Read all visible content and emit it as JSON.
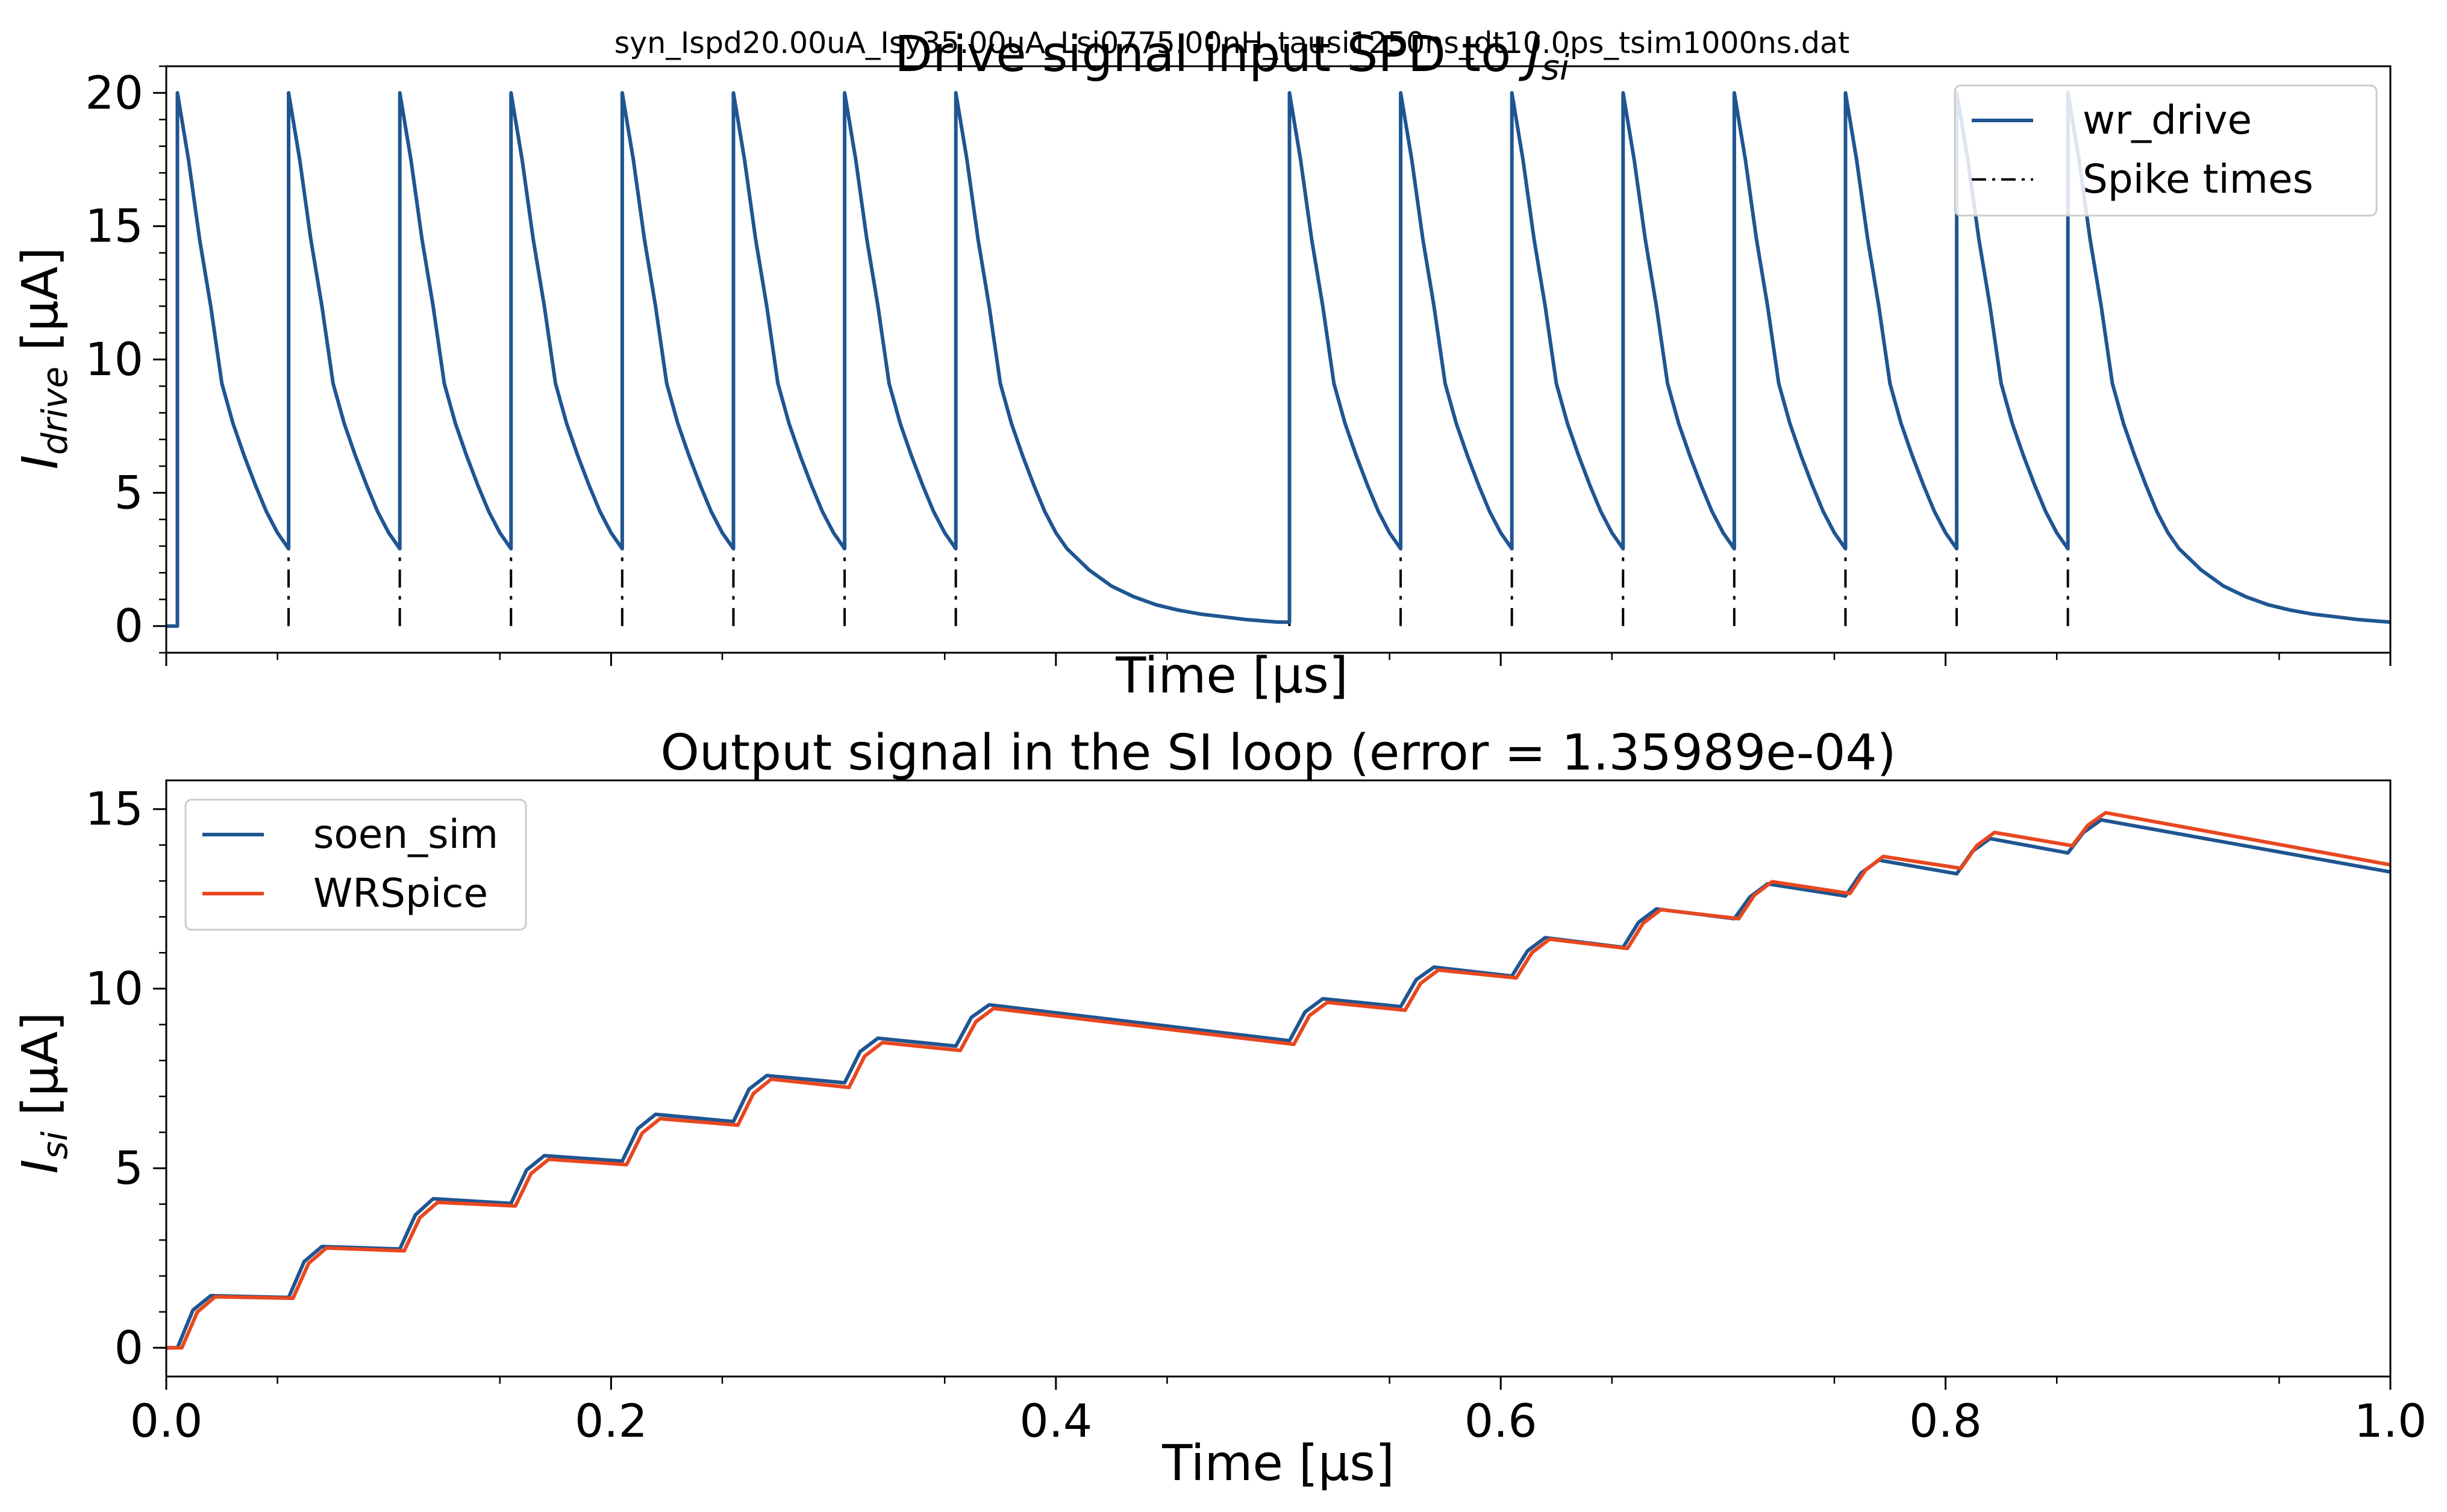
{
  "figure": {
    "suptitle": "syn_Ispd20.00uA_Isy35.00uA_Lsi0775.00nH_tausi1250ns_dt10.0ps_tsim1000ns.dat"
  },
  "colors": {
    "series_blue": "#1f5591",
    "series_orange": "#e8471f",
    "spike_black": "#000000",
    "axes": "#000000"
  },
  "chart_data": [
    {
      "type": "line",
      "title": "Drive signal input SPD to J_si",
      "xlabel": "Time [μs]",
      "ylabel": "I_drive [μA]",
      "xlim": [
        0.0,
        1.0
      ],
      "ylim": [
        -1.0,
        21.0
      ],
      "yticks": [
        0,
        5,
        10,
        15,
        20
      ],
      "xticks_labeled": false,
      "grid": false,
      "legend": "top-right",
      "spike_times": [
        0.005,
        0.055,
        0.105,
        0.155,
        0.205,
        0.255,
        0.305,
        0.355,
        0.505,
        0.555,
        0.605,
        0.655,
        0.705,
        0.755,
        0.805,
        0.855
      ],
      "drive_peak": 20.0,
      "drive_decay_samples_after_spike": {
        "dt_us": [
          0.0,
          0.005,
          0.01,
          0.015,
          0.02,
          0.025,
          0.03,
          0.035,
          0.04,
          0.045,
          0.05,
          0.06,
          0.07,
          0.08,
          0.09,
          0.1,
          0.11,
          0.12,
          0.13,
          0.14,
          0.145
        ],
        "value_uA": [
          20.0,
          17.5,
          14.5,
          12.0,
          9.1,
          7.6,
          6.4,
          5.3,
          4.3,
          3.5,
          2.9,
          2.1,
          1.5,
          1.1,
          0.8,
          0.6,
          0.45,
          0.35,
          0.25,
          0.18,
          0.15
        ]
      },
      "series": [
        {
          "name": "wr_drive",
          "style": "solid",
          "color": "#1f5591"
        },
        {
          "name": "Spike times",
          "style": "dashdot",
          "color": "#000000"
        }
      ]
    },
    {
      "type": "line",
      "title": "Output signal in the SI loop (error = 1.35989e-04)",
      "xlabel": "Time [μs]",
      "ylabel": "I_si [μA]",
      "xlim": [
        0.0,
        1.0
      ],
      "ylim": [
        -0.8,
        15.8
      ],
      "xticks": [
        0.0,
        0.2,
        0.4,
        0.6,
        0.8,
        1.0
      ],
      "xtick_labels": [
        "0.0",
        "0.2",
        "0.4",
        "0.6",
        "0.8",
        "1.0"
      ],
      "yticks": [
        0,
        5,
        10,
        15
      ],
      "grid": false,
      "legend": "top-left",
      "series": [
        {
          "name": "soen_sim",
          "color": "#1f5591",
          "x": [
            0.0,
            0.005,
            0.012,
            0.02,
            0.055,
            0.062,
            0.07,
            0.105,
            0.112,
            0.12,
            0.155,
            0.162,
            0.17,
            0.205,
            0.212,
            0.22,
            0.255,
            0.262,
            0.27,
            0.305,
            0.312,
            0.32,
            0.355,
            0.362,
            0.37,
            0.505,
            0.512,
            0.52,
            0.555,
            0.562,
            0.57,
            0.605,
            0.612,
            0.62,
            0.655,
            0.662,
            0.67,
            0.705,
            0.712,
            0.72,
            0.755,
            0.762,
            0.77,
            0.805,
            0.812,
            0.82,
            0.855,
            0.862,
            0.87,
            1.0
          ],
          "y": [
            0.0,
            0.0,
            1.05,
            1.45,
            1.4,
            2.4,
            2.82,
            2.75,
            3.7,
            4.15,
            4.02,
            4.95,
            5.35,
            5.2,
            6.1,
            6.5,
            6.3,
            7.2,
            7.58,
            7.38,
            8.25,
            8.62,
            8.4,
            9.2,
            9.55,
            8.55,
            9.35,
            9.72,
            9.5,
            10.25,
            10.6,
            10.35,
            11.05,
            11.42,
            11.15,
            11.85,
            12.22,
            11.95,
            12.55,
            12.92,
            12.58,
            13.22,
            13.58,
            13.2,
            13.82,
            14.18,
            13.78,
            14.35,
            14.7,
            13.25
          ]
        },
        {
          "name": "WRSpice",
          "color": "#e8471f",
          "x": [
            0.0,
            0.007,
            0.014,
            0.022,
            0.057,
            0.064,
            0.072,
            0.107,
            0.114,
            0.122,
            0.157,
            0.164,
            0.172,
            0.207,
            0.214,
            0.222,
            0.257,
            0.264,
            0.272,
            0.307,
            0.314,
            0.322,
            0.357,
            0.364,
            0.372,
            0.507,
            0.514,
            0.522,
            0.557,
            0.564,
            0.572,
            0.607,
            0.614,
            0.622,
            0.657,
            0.664,
            0.672,
            0.707,
            0.714,
            0.722,
            0.757,
            0.764,
            0.772,
            0.807,
            0.814,
            0.822,
            0.857,
            0.864,
            0.872,
            1.0
          ],
          "y": [
            0.0,
            0.0,
            1.0,
            1.42,
            1.38,
            2.35,
            2.78,
            2.7,
            3.62,
            4.05,
            3.95,
            4.85,
            5.25,
            5.1,
            5.98,
            6.38,
            6.2,
            7.08,
            7.48,
            7.25,
            8.12,
            8.5,
            8.28,
            9.08,
            9.45,
            8.45,
            9.25,
            9.62,
            9.4,
            10.15,
            10.52,
            10.3,
            11.0,
            11.38,
            11.12,
            11.82,
            12.2,
            11.95,
            12.6,
            12.98,
            12.65,
            13.3,
            13.68,
            13.35,
            13.98,
            14.35,
            13.98,
            14.55,
            14.9,
            13.45
          ]
        }
      ]
    }
  ]
}
